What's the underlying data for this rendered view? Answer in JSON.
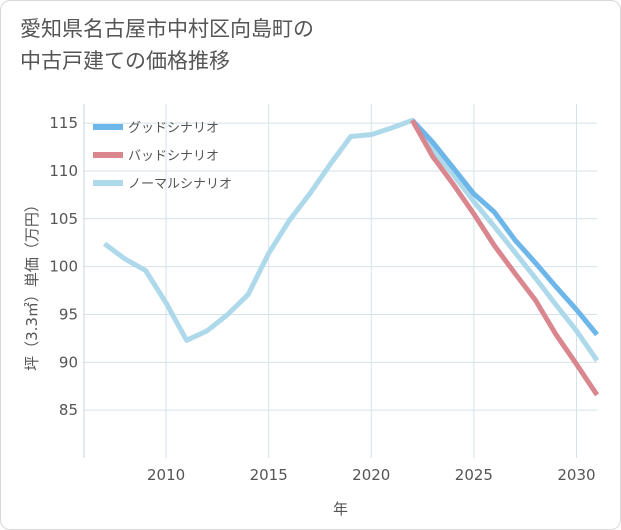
{
  "title_line1": "愛知県名古屋市中村区向島町の",
  "title_line2": "中古戸建ての価格推移",
  "chart_data": {
    "type": "line",
    "xlabel": "年",
    "ylabel": "坪（3.3㎡）単価（万円）",
    "xlim": [
      2006,
      2031
    ],
    "ylim": [
      80,
      117
    ],
    "xticks": [
      2010,
      2015,
      2020,
      2025,
      2030
    ],
    "yticks": [
      85,
      90,
      95,
      100,
      105,
      110,
      115
    ],
    "grid": true,
    "legend_position": "top-left",
    "series": [
      {
        "name": "グッドシナリオ",
        "color": "#6cb6ea",
        "x": [
          2022,
          2023,
          2024,
          2025,
          2026,
          2027,
          2028,
          2029,
          2030,
          2031
        ],
        "y": [
          115.3,
          113.0,
          110.3,
          107.6,
          105.7,
          102.8,
          100.4,
          97.9,
          95.5,
          92.9
        ]
      },
      {
        "name": "バッドシナリオ",
        "color": "#d9868e",
        "x": [
          2022,
          2023,
          2024,
          2025,
          2026,
          2027,
          2028,
          2029,
          2030,
          2031
        ],
        "y": [
          115.3,
          111.5,
          108.6,
          105.5,
          102.2,
          99.3,
          96.5,
          92.9,
          89.8,
          86.6
        ]
      },
      {
        "name": "ノーマルシナリオ",
        "color": "#add9ea",
        "x": [
          2007,
          2008,
          2009,
          2010,
          2011,
          2012,
          2013,
          2014,
          2015,
          2016,
          2017,
          2018,
          2019,
          2020,
          2021,
          2022,
          2023,
          2024,
          2025,
          2026,
          2027,
          2028,
          2029,
          2030,
          2031
        ],
        "y": [
          102.4,
          100.8,
          99.6,
          96.2,
          92.3,
          93.3,
          95.0,
          97.1,
          101.4,
          104.8,
          107.6,
          110.7,
          113.6,
          113.8,
          114.5,
          115.3,
          112.2,
          109.6,
          106.8,
          104.2,
          101.5,
          98.8,
          96.0,
          93.3,
          90.2
        ]
      }
    ]
  }
}
